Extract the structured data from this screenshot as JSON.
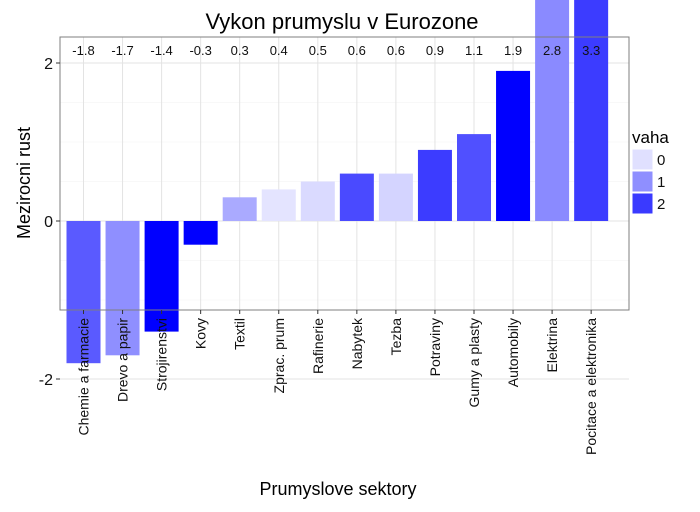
{
  "chart_data": {
    "type": "bar",
    "title": "Vykon prumyslu v Eurozone",
    "xlabel": "Prumyslove sektory",
    "ylabel": "Mezirocni rust",
    "ylim": [
      -2.1,
      4.7
    ],
    "yticks": [
      -2,
      0,
      2,
      4
    ],
    "grid": true,
    "categories": [
      "Chemie a farmacie",
      "Drevo a papir",
      "Strojirenstvi",
      "Kovy",
      "Textil",
      "Zprac. prum",
      "Rafinerie",
      "Nabytek",
      "Tezba",
      "Potraviny",
      "Gumy a plasty",
      "Automobily",
      "Elektrina",
      "Pocitace a elektronika"
    ],
    "values": [
      -1.8,
      -1.7,
      -1.4,
      -0.3,
      0.3,
      0.4,
      0.5,
      0.6,
      0.6,
      0.9,
      1.1,
      1.9,
      2.8,
      3.3
    ],
    "data_labels": [
      "-1.8",
      "-1.7",
      "-1.4",
      "-0.3",
      "0.3",
      "0.4",
      "0.5",
      "0.6",
      "0.6",
      "0.9",
      "1.1",
      "1.9",
      "2.8",
      "3.3"
    ],
    "bar_colors": [
      "#5a5aff",
      "#8f8fff",
      "#0000ff",
      "#0000ff",
      "#aaaaff",
      "#e4e4ff",
      "#dadaff",
      "#4a4aff",
      "#d4d4ff",
      "#3c3cff",
      "#5050ff",
      "#0000ff",
      "#8a8aff",
      "#3c3cff"
    ],
    "legend": {
      "title": "vaha",
      "position": "right",
      "entries": [
        {
          "label": "0",
          "color": "#e0e0ff"
        },
        {
          "label": "1",
          "color": "#8f8fff"
        },
        {
          "label": "2",
          "color": "#3a3aff"
        }
      ]
    }
  }
}
